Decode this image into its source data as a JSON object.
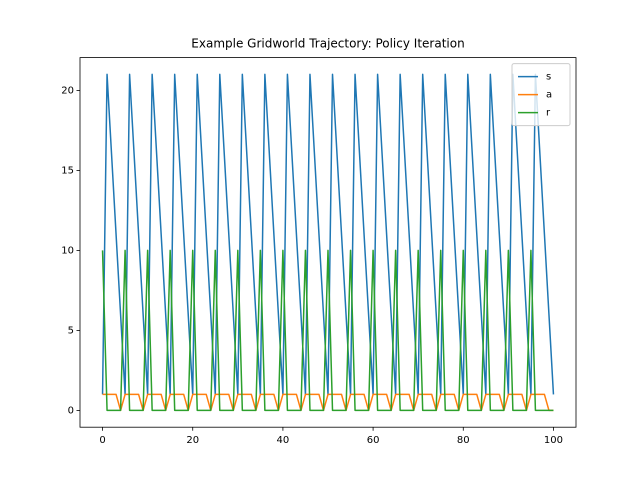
{
  "chart_data": {
    "type": "line",
    "title": "Example Gridworld Trajectory: Policy Iteration",
    "x": [
      0,
      1,
      2,
      3,
      4,
      5,
      6,
      7,
      8,
      9,
      10,
      11,
      12,
      13,
      14,
      15,
      16,
      17,
      18,
      19,
      20,
      21,
      22,
      23,
      24,
      25,
      26,
      27,
      28,
      29,
      30,
      31,
      32,
      33,
      34,
      35,
      36,
      37,
      38,
      39,
      40,
      41,
      42,
      43,
      44,
      45,
      46,
      47,
      48,
      49,
      50,
      51,
      52,
      53,
      54,
      55,
      56,
      57,
      58,
      59,
      60,
      61,
      62,
      63,
      64,
      65,
      66,
      67,
      68,
      69,
      70,
      71,
      72,
      73,
      74,
      75,
      76,
      77,
      78,
      79,
      80,
      81,
      82,
      83,
      84,
      85,
      86,
      87,
      88,
      89,
      90,
      91,
      92,
      93,
      94,
      95,
      96,
      97,
      98,
      99,
      100
    ],
    "series": [
      {
        "name": "s",
        "color": "#1f77b4",
        "values": [
          1,
          21,
          16,
          11,
          6,
          1,
          21,
          16,
          11,
          6,
          1,
          21,
          16,
          11,
          6,
          1,
          21,
          16,
          11,
          6,
          1,
          21,
          16,
          11,
          6,
          1,
          21,
          16,
          11,
          6,
          1,
          21,
          16,
          11,
          6,
          1,
          21,
          16,
          11,
          6,
          1,
          21,
          16,
          11,
          6,
          1,
          21,
          16,
          11,
          6,
          1,
          21,
          16,
          11,
          6,
          1,
          21,
          16,
          11,
          6,
          1,
          21,
          16,
          11,
          6,
          1,
          21,
          16,
          11,
          6,
          1,
          21,
          16,
          11,
          6,
          1,
          21,
          16,
          11,
          6,
          1,
          21,
          16,
          11,
          6,
          1,
          21,
          16,
          11,
          6,
          1,
          21,
          16,
          11,
          6,
          1,
          21,
          16,
          11,
          6,
          1
        ]
      },
      {
        "name": "a",
        "color": "#ff7f0e",
        "values": [
          1,
          1,
          1,
          1,
          0,
          1,
          1,
          1,
          1,
          0,
          1,
          1,
          1,
          1,
          0,
          1,
          1,
          1,
          1,
          0,
          1,
          1,
          1,
          1,
          0,
          1,
          1,
          1,
          1,
          0,
          1,
          1,
          1,
          1,
          0,
          1,
          1,
          1,
          1,
          0,
          1,
          1,
          1,
          1,
          0,
          1,
          1,
          1,
          1,
          0,
          1,
          1,
          1,
          1,
          0,
          1,
          1,
          1,
          1,
          0,
          1,
          1,
          1,
          1,
          0,
          1,
          1,
          1,
          1,
          0,
          1,
          1,
          1,
          1,
          0,
          1,
          1,
          1,
          1,
          0,
          1,
          1,
          1,
          1,
          0,
          1,
          1,
          1,
          1,
          0,
          1,
          1,
          1,
          1,
          0,
          1,
          1,
          1,
          1,
          0,
          0
        ]
      },
      {
        "name": "r",
        "color": "#2ca02c",
        "values": [
          10,
          0,
          0,
          0,
          0,
          10,
          0,
          0,
          0,
          0,
          10,
          0,
          0,
          0,
          0,
          10,
          0,
          0,
          0,
          0,
          10,
          0,
          0,
          0,
          0,
          10,
          0,
          0,
          0,
          0,
          10,
          0,
          0,
          0,
          0,
          10,
          0,
          0,
          0,
          0,
          10,
          0,
          0,
          0,
          0,
          10,
          0,
          0,
          0,
          0,
          10,
          0,
          0,
          0,
          0,
          10,
          0,
          0,
          0,
          0,
          10,
          0,
          0,
          0,
          0,
          10,
          0,
          0,
          0,
          0,
          10,
          0,
          0,
          0,
          0,
          10,
          0,
          0,
          0,
          0,
          10,
          0,
          0,
          0,
          0,
          10,
          0,
          0,
          0,
          0,
          10,
          0,
          0,
          0,
          0,
          10,
          0,
          0,
          0,
          0,
          0
        ]
      }
    ],
    "xlim": [
      -5,
      105
    ],
    "xticks": [
      0,
      20,
      40,
      60,
      80,
      100
    ],
    "ylim": [
      -1.05,
      22.05
    ],
    "yticks": [
      0,
      5,
      10,
      15,
      20
    ],
    "legend": "upper-right"
  }
}
